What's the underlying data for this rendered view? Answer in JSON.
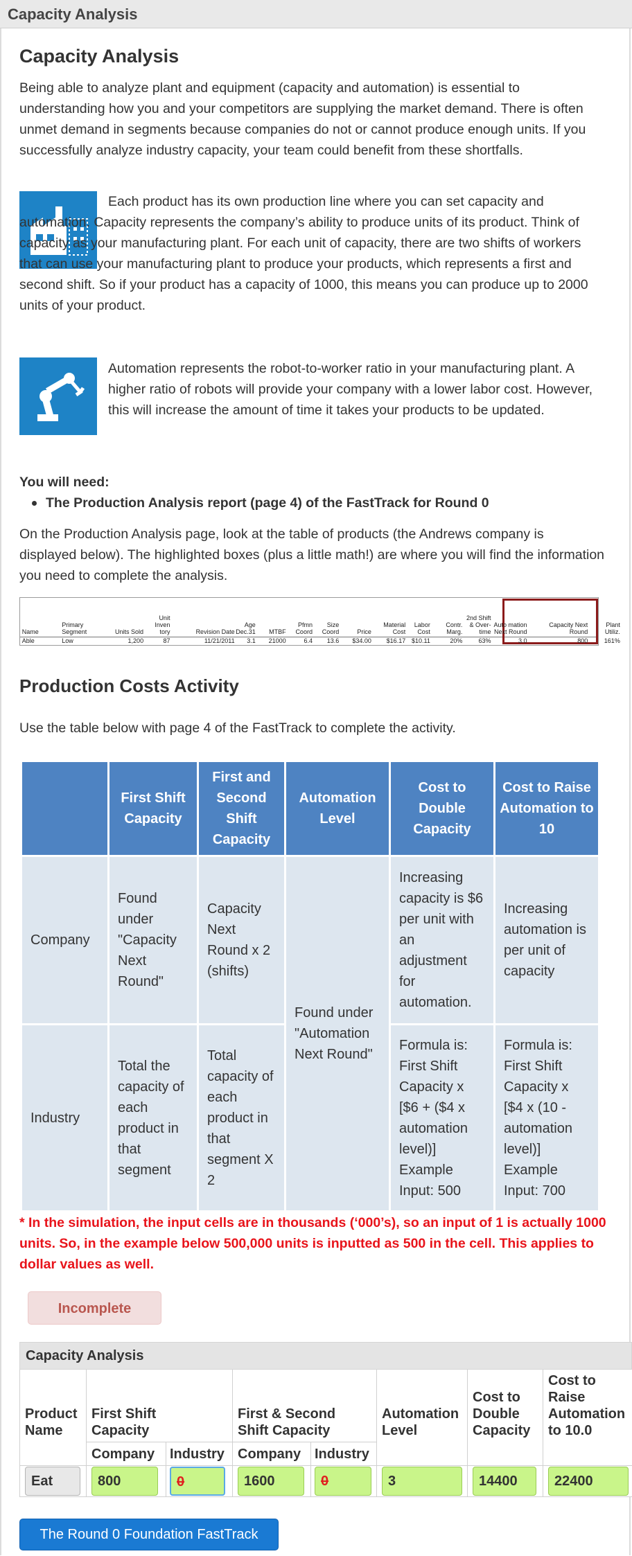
{
  "window_title": "Capacity Analysis",
  "page_title": "Capacity Analysis",
  "intro": "Being able to analyze plant and equipment (capacity and automation) is essential to understanding how you and your competitors are supplying the market demand. There is often unmet demand in segments because companies do not or cannot produce enough units. If you successfully analyze industry capacity, your team could benefit from these shortfalls.",
  "capacity_paragraph": "Each product has its own production line where you can set capacity and automation.  Capacity represents the company’s ability to produce units of its product. Think of capacity as your manufacturing plant. For each unit of capacity, there are two shifts of workers that can use your manufacturing plant to produce your products, which represents a first and second shift. So if your product has a capacity of 1000, this means you can produce up to 2000 units of your product.",
  "automation_paragraph": "Automation represents the robot-to-worker ratio in your manufacturing plant. A higher ratio of robots will provide your company with a lower labor cost. However, this will increase the amount of time it takes your products to be updated.",
  "need_heading": "You will need:",
  "need_item": "The Production Analysis report (page 4) of the FastTrack for Round 0",
  "report_instructions": "On the Production Analysis page, look at the table of products (the Andrews company is displayed below). The highlighted boxes (plus a little math!) are where you will find the information you need to complete the analysis.",
  "report": {
    "headers": [
      "Name",
      "Primary Segment",
      "Units Sold",
      "Unit Inven tory",
      "Revision Date",
      "Age Dec.31",
      "MTBF",
      "Pfmn Coord",
      "Size Coord",
      "Price",
      "Material Cost",
      "Labor Cost",
      "Contr. Marg.",
      "2nd Shift & Over- time",
      "Auto mation Next Round",
      "Capacity Next Round",
      "Plant Utiliz."
    ],
    "row": [
      "Able",
      "Low",
      "1,200",
      "87",
      "11/21/2011",
      "3.1",
      "21000",
      "6.4",
      "13.6",
      "$34.00",
      "$16.17",
      "$10.11",
      "20%",
      "63%",
      "3.0",
      "800",
      "161%"
    ]
  },
  "activity_title": "Production Costs Activity",
  "activity_instructions": "Use the table below with page 4 of the FastTrack to complete the activity.",
  "guide_table": {
    "headers": [
      "First Shift Capacity",
      "First and Second Shift Capacity",
      "Automation Level",
      "Cost to Double Capacity",
      "Cost to Raise Automation to 10"
    ],
    "rows": [
      {
        "label": "Company",
        "first_shift": "Found under \"Capacity Next Round\"",
        "both_shifts": "Capacity Next Round x 2 (shifts)",
        "cost_double": "Increasing capacity is $6 per unit with an adjustment for automation.",
        "cost_raise": "Increasing automation is per unit of capacity"
      },
      {
        "label": "Industry",
        "first_shift": "Total the capacity of each product in that segment",
        "both_shifts": "Total capacity of each product in that segment X 2",
        "cost_double": "Formula is: First Shift Capacity x [$6  + ($4 x automation level)] Example Input: 500",
        "cost_raise": "Formula is: First Shift Capacity x [$4 x (10 - automation level)] Example Input: 700"
      }
    ],
    "automation_merged": "Found under \"Automation Next Round\""
  },
  "note": "* In the simulation, the input cells are in thousands (‘000’s), so an input of 1 is actually 1000 units. So, in the example below 500,000 units is inputted as 500 in the cell. This applies to dollar values as well.",
  "status_badge": "Incomplete",
  "form": {
    "title": "Capacity Analysis",
    "headers": {
      "product_name": "Product Name",
      "first_shift": "First Shift Capacity",
      "both_shifts": "First & Second Shift Capacity",
      "automation": "Automation Level",
      "cost_double": "Cost to Double Capacity",
      "cost_raise": "Cost to Raise Automation to 10.0"
    },
    "subheaders": {
      "company": "Company",
      "industry": "Industry"
    },
    "row": {
      "product": "Eat",
      "first_company": "800",
      "first_industry": "0",
      "both_company": "1600",
      "both_industry": "0",
      "automation": "3",
      "cost_double": "14400",
      "cost_raise": "22400"
    }
  },
  "fasttrack_button": "The Round 0 Foundation FastTrack",
  "colors": {
    "header_blue": "#4e83c2",
    "cell_bg": "#dde6ef",
    "input_green": "#c9f58a",
    "note_red": "#e8141b",
    "button_blue": "#1a7ad3"
  },
  "icons": [
    "factory-icon",
    "robot-arm-icon"
  ]
}
